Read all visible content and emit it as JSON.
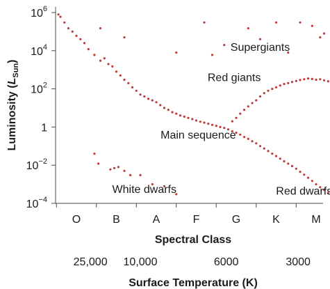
{
  "chart_data": {
    "type": "scatter",
    "title": "",
    "ylabel": "Luminosity (L_Sun)",
    "ylabel_parts": {
      "base": "Luminosity (",
      "var": "L",
      "sub": "Sun",
      "close": ")"
    },
    "y_scale": "log",
    "ylim": [
      0.0001,
      1000000
    ],
    "y_ticks": [
      {
        "value": 1000000,
        "base": "10",
        "exp": "6"
      },
      {
        "value": 10000,
        "base": "10",
        "exp": "4"
      },
      {
        "value": 100,
        "base": "10",
        "exp": "2"
      },
      {
        "value": 1,
        "base": "1",
        "exp": ""
      },
      {
        "value": 0.01,
        "base": "10",
        "exp": "−2"
      },
      {
        "value": 0.0001,
        "base": "10",
        "exp": "−4"
      }
    ],
    "xlabel": "Spectral Class",
    "x_categories": [
      "O",
      "B",
      "A",
      "F",
      "G",
      "K",
      "M"
    ],
    "x2label": "Surface Temperature (K)",
    "x2_ticks": [
      {
        "label": "25,000",
        "position_class": 0.35
      },
      {
        "label": "10,000",
        "position_class": 1.6
      },
      {
        "label": "6000",
        "position_class": 3.75
      },
      {
        "label": "3000",
        "position_class": 5.55
      }
    ],
    "grid": false,
    "point_color": "#c03a3a",
    "annotations": [
      {
        "text": "Supergiants",
        "x_class": 4.6,
        "y_value": 10000
      },
      {
        "text": "Red giants",
        "x_class": 3.95,
        "y_value": 250
      },
      {
        "text": "Main sequence",
        "x_class": 3.05,
        "y_value": 0.25
      },
      {
        "text": "White dwarfs",
        "x_class": 1.7,
        "y_value": 0.00035
      },
      {
        "text": "Red dwarfs",
        "x_class": 5.7,
        "y_value": 0.00028
      }
    ],
    "series": [
      {
        "group": "main sequence",
        "points": [
          [
            -0.45,
            800000
          ],
          [
            -0.4,
            600000
          ],
          [
            -0.3,
            300000
          ],
          [
            -0.2,
            150000
          ],
          [
            -0.1,
            100000
          ],
          [
            0.0,
            60000
          ],
          [
            0.1,
            40000
          ],
          [
            0.2,
            25000
          ],
          [
            0.3,
            12000
          ],
          [
            0.45,
            6000
          ],
          [
            0.6,
            3000
          ],
          [
            0.7,
            4000
          ],
          [
            0.8,
            2000
          ],
          [
            0.9,
            1500
          ],
          [
            1.0,
            800
          ],
          [
            1.1,
            500
          ],
          [
            1.2,
            300
          ],
          [
            1.3,
            200
          ],
          [
            1.4,
            120
          ],
          [
            1.5,
            80
          ],
          [
            1.6,
            50
          ],
          [
            1.7,
            40
          ],
          [
            1.8,
            30
          ],
          [
            1.9,
            25
          ],
          [
            2.0,
            20
          ],
          [
            2.1,
            14
          ],
          [
            2.2,
            10
          ],
          [
            2.3,
            8
          ],
          [
            2.4,
            6
          ],
          [
            2.5,
            5
          ],
          [
            2.6,
            4
          ],
          [
            2.7,
            3.5
          ],
          [
            2.8,
            3
          ],
          [
            2.9,
            2.6
          ],
          [
            3.0,
            2.2
          ],
          [
            3.1,
            1.9
          ],
          [
            3.2,
            1.7
          ],
          [
            3.3,
            1.5
          ],
          [
            3.4,
            1.3
          ],
          [
            3.5,
            1.15
          ],
          [
            3.6,
            1.0
          ],
          [
            3.7,
            0.9
          ],
          [
            3.8,
            0.75
          ],
          [
            3.9,
            0.6
          ],
          [
            4.0,
            0.5
          ],
          [
            4.1,
            0.4
          ],
          [
            4.2,
            0.3
          ],
          [
            4.3,
            0.24
          ],
          [
            4.4,
            0.18
          ],
          [
            4.5,
            0.14
          ],
          [
            4.6,
            0.1
          ],
          [
            4.7,
            0.075
          ],
          [
            4.8,
            0.055
          ],
          [
            4.9,
            0.04
          ],
          [
            5.0,
            0.03
          ],
          [
            5.1,
            0.022
          ],
          [
            5.2,
            0.016
          ],
          [
            5.3,
            0.012
          ],
          [
            5.4,
            0.009
          ],
          [
            5.5,
            0.0065
          ],
          [
            5.6,
            0.0045
          ],
          [
            5.7,
            0.0032
          ],
          [
            5.8,
            0.0022
          ],
          [
            5.9,
            0.0015
          ],
          [
            6.0,
            0.001
          ],
          [
            6.1,
            0.0007
          ],
          [
            6.2,
            0.0005
          ],
          [
            6.3,
            0.00035
          ],
          [
            6.4,
            0.00025
          ],
          [
            6.5,
            0.00018
          ]
        ]
      },
      {
        "group": "red giants",
        "points": [
          [
            3.9,
            2
          ],
          [
            4.0,
            3
          ],
          [
            4.1,
            5
          ],
          [
            4.2,
            8
          ],
          [
            4.3,
            12
          ],
          [
            4.4,
            18
          ],
          [
            4.5,
            25
          ],
          [
            4.6,
            40
          ],
          [
            4.7,
            60
          ],
          [
            4.8,
            80
          ],
          [
            4.9,
            100
          ],
          [
            5.0,
            120
          ],
          [
            5.1,
            150
          ],
          [
            5.2,
            180
          ],
          [
            5.3,
            200
          ],
          [
            5.4,
            230
          ],
          [
            5.5,
            260
          ],
          [
            5.6,
            290
          ],
          [
            5.7,
            320
          ],
          [
            5.8,
            350
          ],
          [
            5.9,
            330
          ],
          [
            6.0,
            300
          ],
          [
            6.1,
            320
          ],
          [
            6.2,
            280
          ],
          [
            6.3,
            250
          ]
        ]
      },
      {
        "group": "supergiants",
        "points": [
          [
            0.6,
            150000
          ],
          [
            1.2,
            50000
          ],
          [
            2.5,
            8000
          ],
          [
            3.2,
            300000
          ],
          [
            3.4,
            6000
          ],
          [
            3.7,
            20000
          ],
          [
            4.3,
            150000
          ],
          [
            4.6,
            40000
          ],
          [
            5.0,
            300000
          ],
          [
            5.3,
            8000
          ],
          [
            5.6,
            300000
          ],
          [
            5.9,
            200000
          ],
          [
            6.1,
            50000
          ],
          [
            6.2,
            80000
          ],
          [
            6.4,
            120000
          ]
        ]
      },
      {
        "group": "white dwarfs",
        "points": [
          [
            0.45,
            0.04
          ],
          [
            0.55,
            0.012
          ],
          [
            0.85,
            0.006
          ],
          [
            0.95,
            0.007
          ],
          [
            1.05,
            0.008
          ],
          [
            1.2,
            0.005
          ],
          [
            1.35,
            0.003
          ],
          [
            1.6,
            0.003
          ],
          [
            1.9,
            0.001
          ],
          [
            2.2,
            0.0008
          ],
          [
            2.5,
            0.0003
          ]
        ]
      }
    ]
  }
}
